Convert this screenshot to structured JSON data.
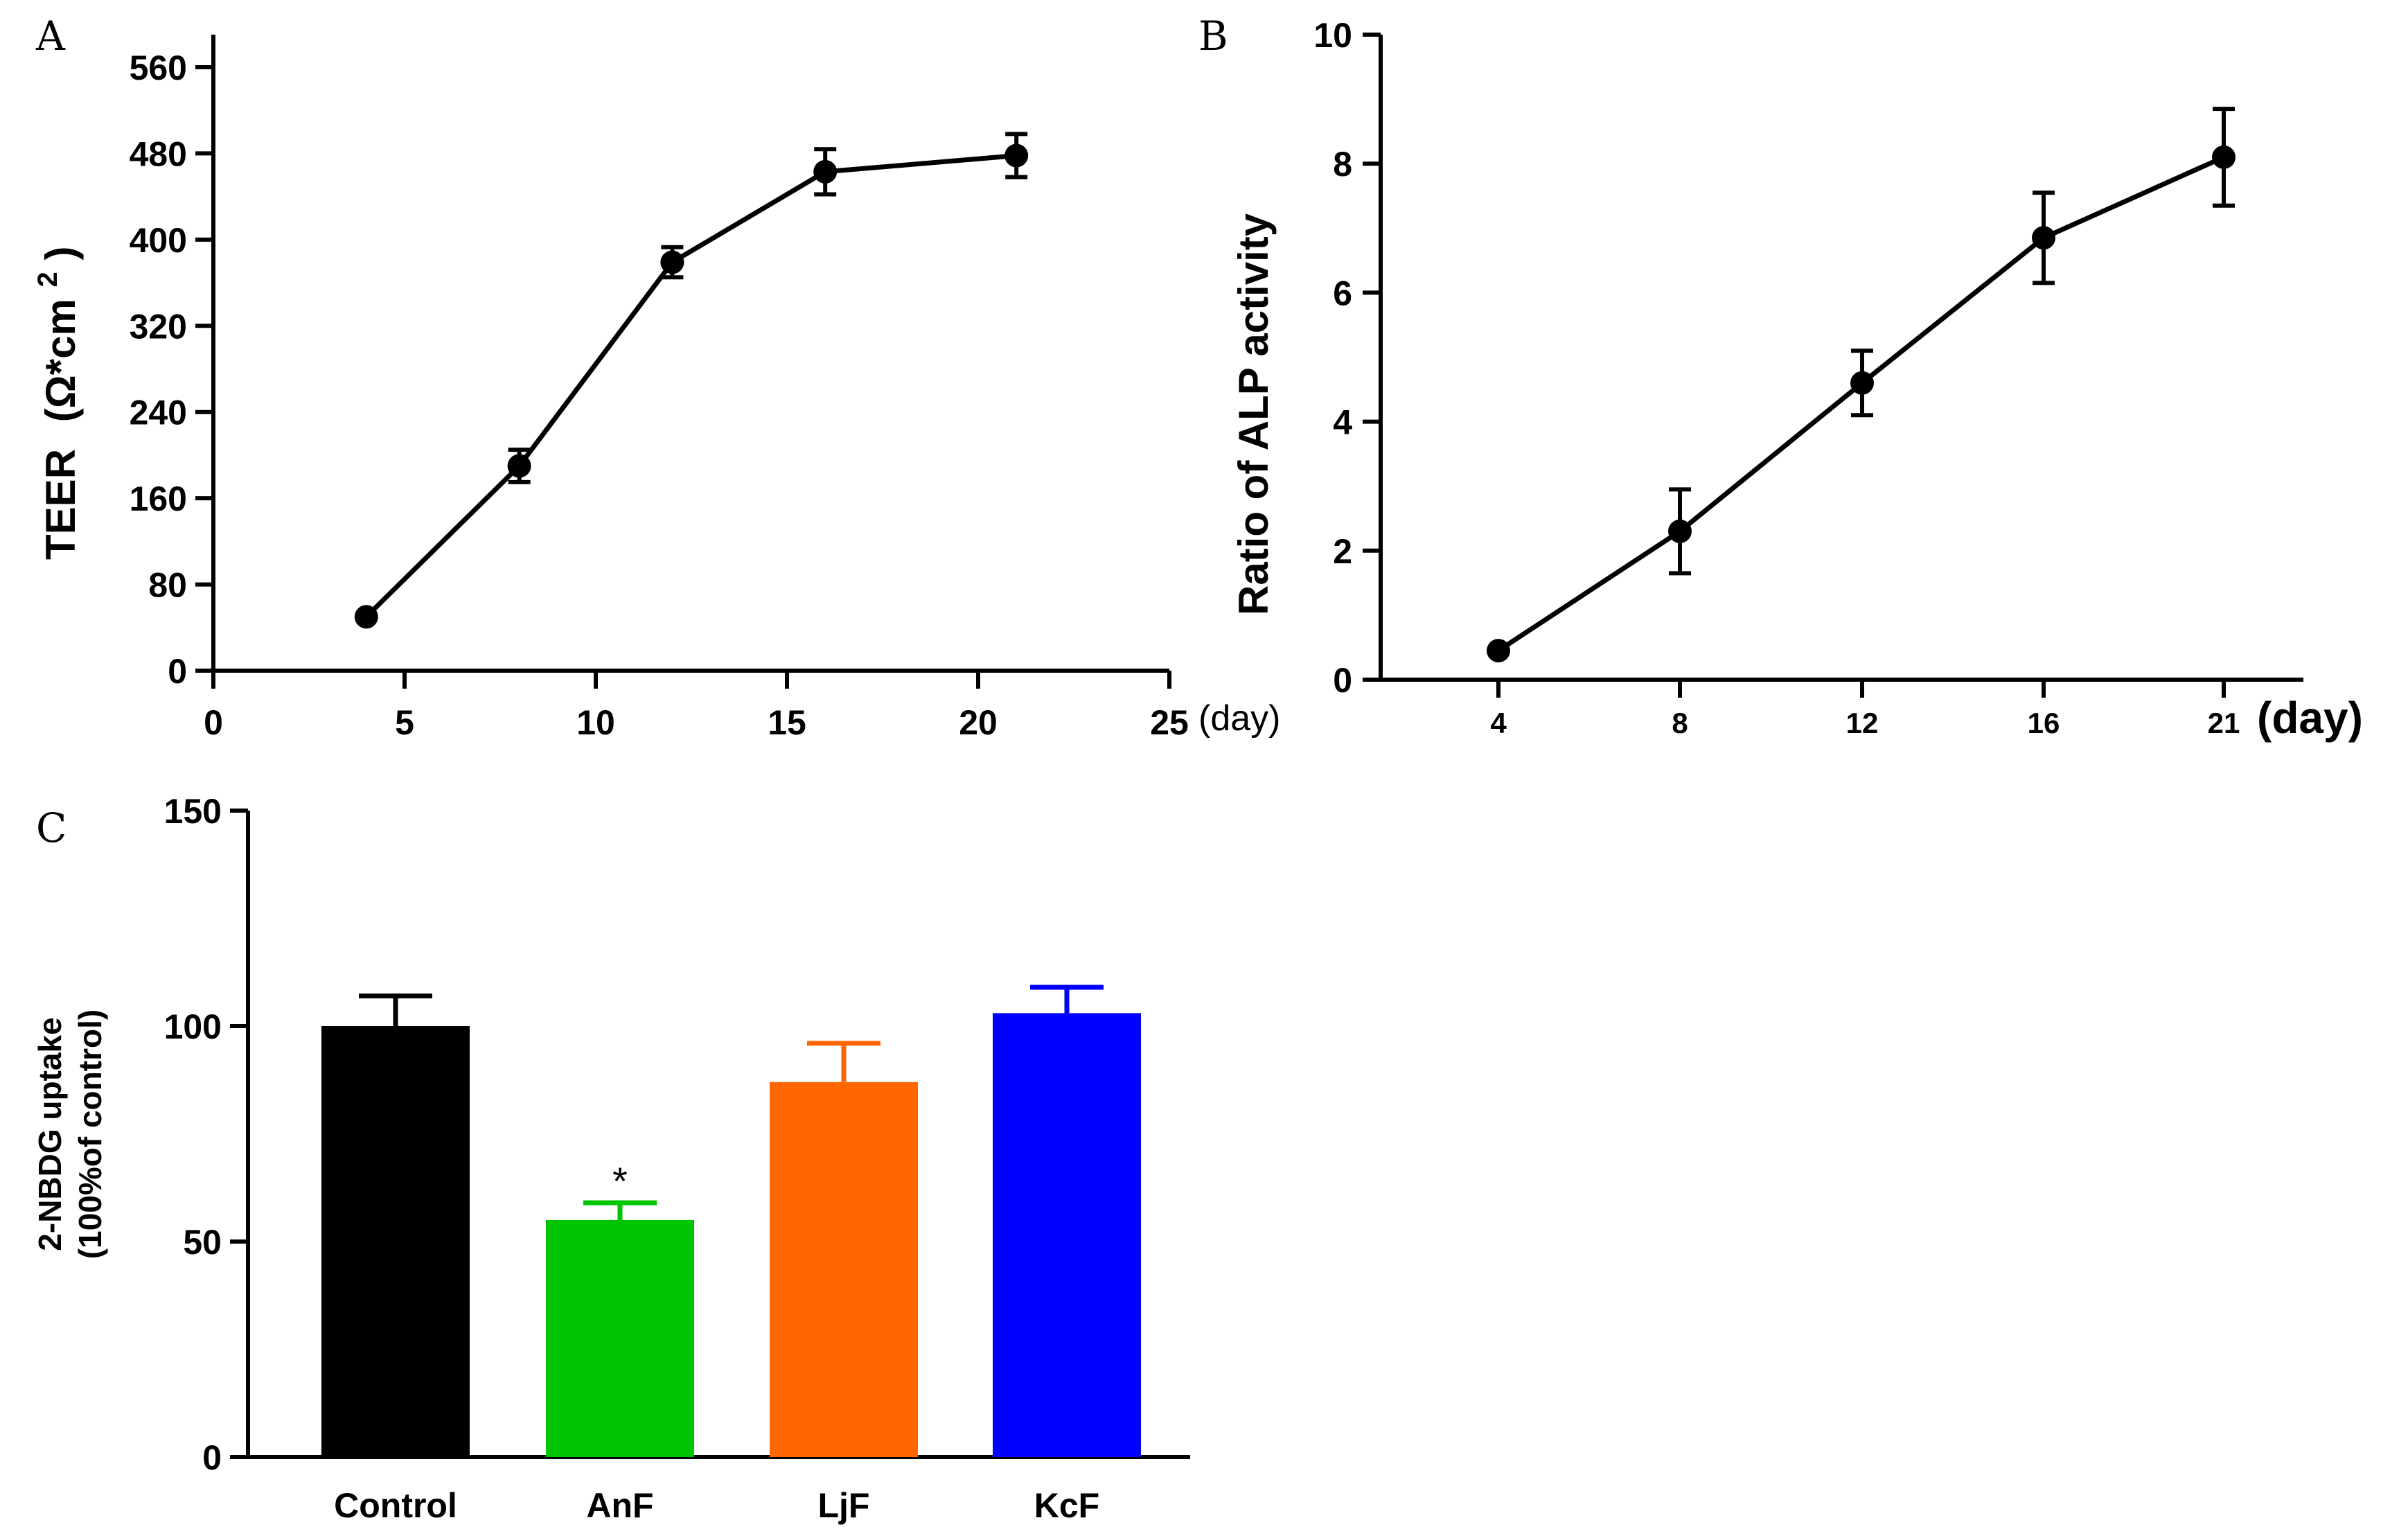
{
  "chart_data": [
    {
      "panel": "A",
      "type": "line",
      "ylabel": "TEER",
      "yunit": "(Ω*cm",
      "yunit_sup": "2",
      "yunit_close": ")",
      "xunit": "(day)",
      "xlim": [
        0,
        25
      ],
      "ylim": [
        0,
        560
      ],
      "xticks": [
        0,
        5,
        10,
        15,
        20,
        25
      ],
      "yticks": [
        0,
        80,
        160,
        240,
        320,
        400,
        480,
        560
      ],
      "x": [
        4,
        8,
        12,
        16,
        21
      ],
      "y": [
        50,
        190,
        379,
        463,
        478
      ],
      "err": [
        0,
        15,
        14,
        21,
        20
      ]
    },
    {
      "panel": "B",
      "type": "line",
      "ylabel": "Ratio of ALP activity",
      "xunit": "(day)",
      "ylim": [
        0,
        10
      ],
      "yticks": [
        0,
        2,
        4,
        6,
        8,
        10
      ],
      "categories": [
        "4",
        "8",
        "12",
        "16",
        "21"
      ],
      "values": [
        0.45,
        2.3,
        4.6,
        6.85,
        8.1
      ],
      "err": [
        0,
        0.65,
        0.5,
        0.7,
        0.75
      ]
    },
    {
      "panel": "C",
      "type": "bar",
      "ylabel_line1": "2-NBDG uptake",
      "ylabel_line2": "(100%of control)",
      "ylim": [
        0,
        150
      ],
      "yticks": [
        0,
        50,
        100,
        150
      ],
      "categories": [
        "Control",
        "AnF",
        "LjF",
        "KcF"
      ],
      "values": [
        100,
        55,
        87,
        103
      ],
      "err": [
        7,
        4,
        9,
        6
      ],
      "colors": [
        "#000000",
        "#00c400",
        "#ff6600",
        "#0000ff"
      ],
      "annotations": [
        "",
        "*",
        "",
        ""
      ]
    }
  ]
}
